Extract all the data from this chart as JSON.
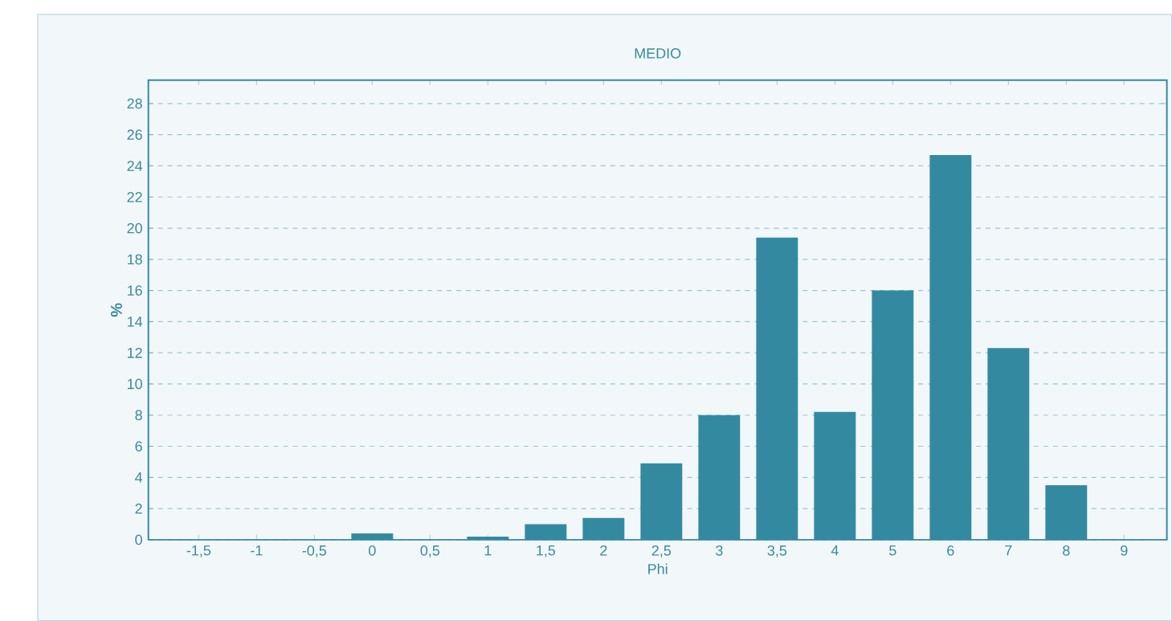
{
  "chart_data": {
    "type": "bar",
    "title": "MEDIO",
    "xlabel": "Phi",
    "ylabel": "%",
    "categories": [
      "-1,5",
      "-1",
      "-0,5",
      "0",
      "0,5",
      "1",
      "1,5",
      "2",
      "2,5",
      "3",
      "3,5",
      "4",
      "5",
      "6",
      "7",
      "8",
      "9"
    ],
    "values": [
      0,
      0,
      0,
      0.4,
      0,
      0.2,
      1.0,
      1.4,
      4.9,
      8.0,
      19.4,
      8.2,
      16.0,
      24.7,
      12.3,
      3.5,
      0
    ],
    "color": "#338aa0",
    "ylim": [
      0,
      29.5
    ],
    "yticks": [
      0,
      2,
      4,
      6,
      8,
      10,
      12,
      14,
      16,
      18,
      20,
      22,
      24,
      26,
      28
    ],
    "grid": "y"
  }
}
